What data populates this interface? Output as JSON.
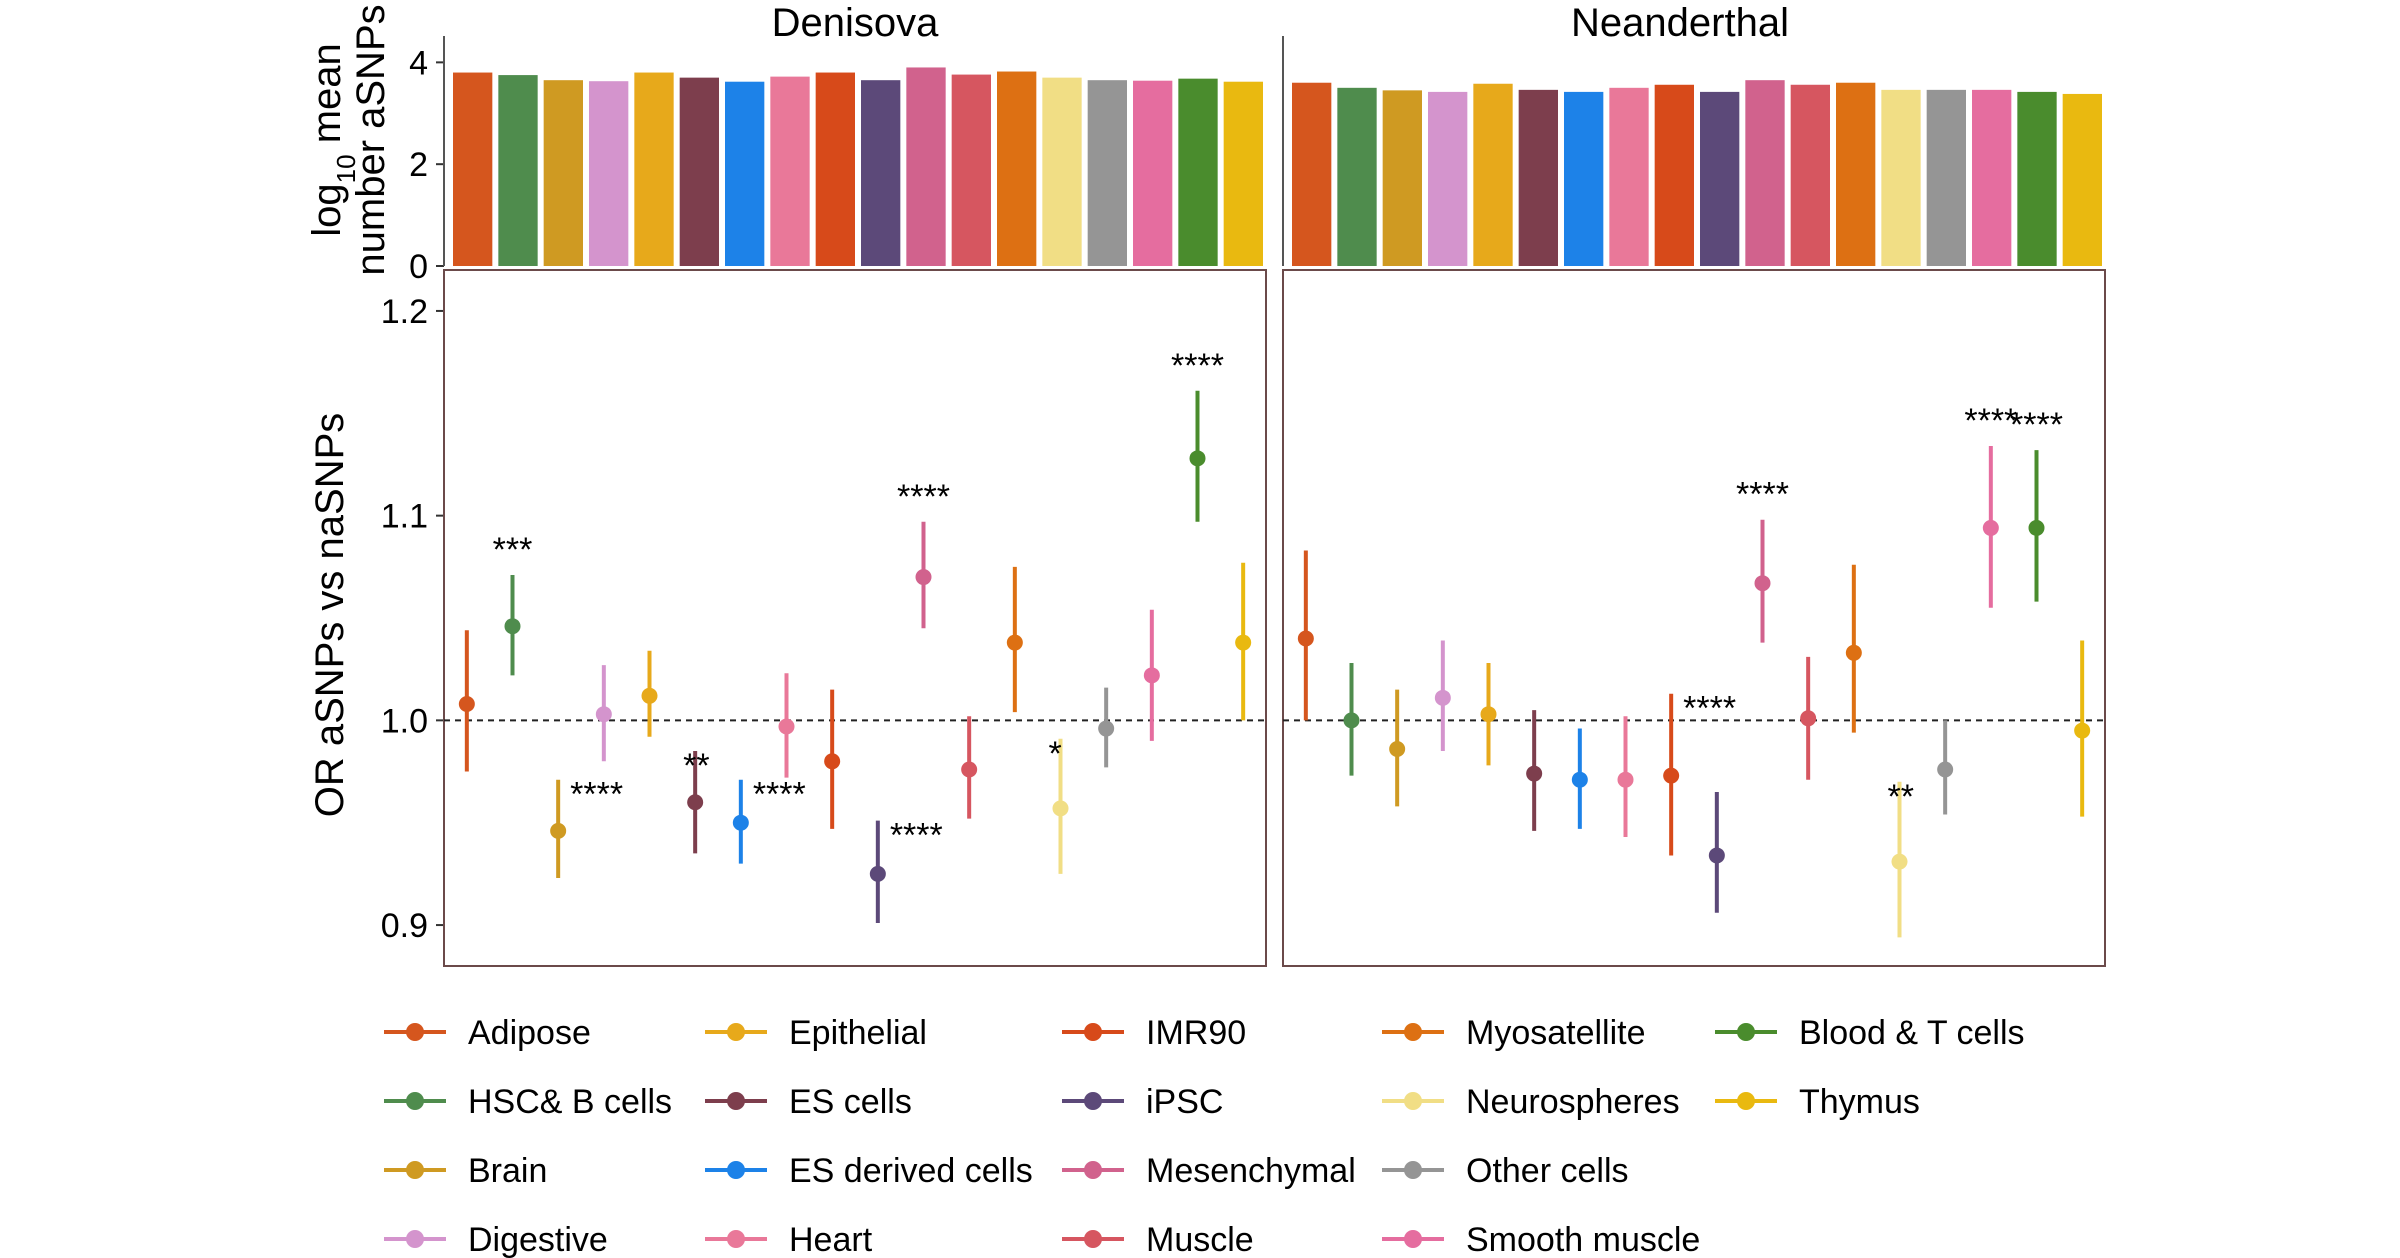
{
  "chart_data": [
    {
      "type": "bar",
      "panels": [
        "Denisova",
        "Neanderthal"
      ],
      "ylabel": {
        "line1": "log",
        "sub": "10",
        "line1_suffix": " mean",
        "line2": "number aSNPs"
      },
      "ylim": [
        0,
        4.4
      ],
      "yticks": [
        "0",
        "2",
        "4"
      ],
      "categories": [
        "Adipose",
        "HSC& B cells",
        "Brain",
        "Digestive",
        "Epithelial",
        "ES cells",
        "ES derived cells",
        "Heart",
        "IMR90",
        "iPSC",
        "Mesenchymal",
        "Muscle",
        "Myosatellite",
        "Neurospheres",
        "Other cells",
        "Smooth muscle",
        "Blood & T cells",
        "Thymus"
      ],
      "series": [
        {
          "panel": "Denisova",
          "values": [
            3.8,
            3.75,
            3.65,
            3.63,
            3.8,
            3.7,
            3.62,
            3.72,
            3.8,
            3.65,
            3.9,
            3.76,
            3.82,
            3.7,
            3.65,
            3.64,
            3.68,
            3.62
          ]
        },
        {
          "panel": "Neanderthal",
          "values": [
            3.6,
            3.5,
            3.45,
            3.42,
            3.58,
            3.46,
            3.42,
            3.5,
            3.56,
            3.42,
            3.65,
            3.56,
            3.6,
            3.46,
            3.46,
            3.46,
            3.42,
            3.38
          ]
        }
      ]
    },
    {
      "type": "scatter",
      "subtype": "point-range",
      "panels": [
        "Denisova",
        "Neanderthal"
      ],
      "ylabel": "OR aSNPs vs naSNPs",
      "ylim": [
        0.88,
        1.22
      ],
      "yticks": [
        "0.9",
        "1.0",
        "1.1",
        "1.2"
      ],
      "reference_line": 1.0,
      "categories": [
        "Adipose",
        "HSC& B cells",
        "Brain",
        "Digestive",
        "Epithelial",
        "ES cells",
        "ES derived cells",
        "Heart",
        "IMR90",
        "iPSC",
        "Mesenchymal",
        "Muscle",
        "Myosatellite",
        "Neurospheres",
        "Other cells",
        "Smooth muscle",
        "Blood & T cells",
        "Thymus"
      ],
      "series": [
        {
          "panel": "Denisova",
          "or": [
            1.008,
            1.046,
            0.946,
            1.003,
            1.012,
            0.96,
            0.95,
            0.997,
            0.98,
            0.925,
            1.07,
            0.976,
            1.038,
            0.957,
            0.996,
            1.022,
            1.128,
            1.038
          ],
          "lo": [
            0.975,
            1.022,
            0.923,
            0.98,
            0.992,
            0.935,
            0.93,
            0.972,
            0.947,
            0.901,
            1.045,
            0.952,
            1.004,
            0.925,
            0.977,
            0.99,
            1.097,
            1.0
          ],
          "hi": [
            1.044,
            1.071,
            0.971,
            1.027,
            1.034,
            0.985,
            0.971,
            1.023,
            1.015,
            0.951,
            1.097,
            1.002,
            1.075,
            0.991,
            1.016,
            1.054,
            1.161,
            1.077
          ],
          "significance": [
            "",
            "***",
            "****",
            "",
            "",
            "**",
            "****",
            "",
            "",
            "****",
            "****",
            "",
            "",
            "*",
            "",
            "",
            "****",
            ""
          ]
        },
        {
          "panel": "Neanderthal",
          "or": [
            1.04,
            1.0,
            0.986,
            1.011,
            1.003,
            0.974,
            0.971,
            0.971,
            0.973,
            0.934,
            1.067,
            1.001,
            1.033,
            0.931,
            0.976,
            1.094,
            1.094,
            0.995
          ],
          "lo": [
            1.0,
            0.973,
            0.958,
            0.985,
            0.978,
            0.946,
            0.947,
            0.943,
            0.934,
            0.906,
            1.038,
            0.971,
            0.994,
            0.894,
            0.954,
            1.055,
            1.058,
            0.953
          ],
          "hi": [
            1.083,
            1.028,
            1.015,
            1.039,
            1.028,
            1.005,
            0.996,
            1.002,
            1.013,
            0.965,
            1.098,
            1.031,
            1.076,
            0.97,
            1.0,
            1.134,
            1.132,
            1.039
          ],
          "significance": [
            "",
            "",
            "",
            "",
            "",
            "",
            "",
            "",
            "****",
            "",
            "****",
            "",
            "",
            "**",
            "",
            "****",
            "****",
            ""
          ]
        }
      ]
    }
  ],
  "legend": {
    "placement": "bottom",
    "items": [
      {
        "label": "Adipose",
        "color": "#d5561e"
      },
      {
        "label": "HSC& B cells",
        "color": "#4f8c4d"
      },
      {
        "label": "Brain",
        "color": "#cf9a22"
      },
      {
        "label": "Digestive",
        "color": "#d494cd"
      },
      {
        "label": "Epithelial",
        "color": "#e7a91b"
      },
      {
        "label": "ES cells",
        "color": "#7d3e4d"
      },
      {
        "label": "ES derived cells",
        "color": "#1d82e8"
      },
      {
        "label": "Heart",
        "color": "#e97899"
      },
      {
        "label": "IMR90",
        "color": "#d74a1a"
      },
      {
        "label": "iPSC",
        "color": "#5c4979"
      },
      {
        "label": "Mesenchymal",
        "color": "#d1628d"
      },
      {
        "label": "Muscle",
        "color": "#d65660"
      },
      {
        "label": "Myosatellite",
        "color": "#dd7013"
      },
      {
        "label": "Neurospheres",
        "color": "#f1de85"
      },
      {
        "label": "Other cells",
        "color": "#959595"
      },
      {
        "label": "Smooth muscle",
        "color": "#e56d9f"
      },
      {
        "label": "Blood & T cells",
        "color": "#4a8c2d"
      },
      {
        "label": "Thymus",
        "color": "#e9b910"
      }
    ]
  }
}
